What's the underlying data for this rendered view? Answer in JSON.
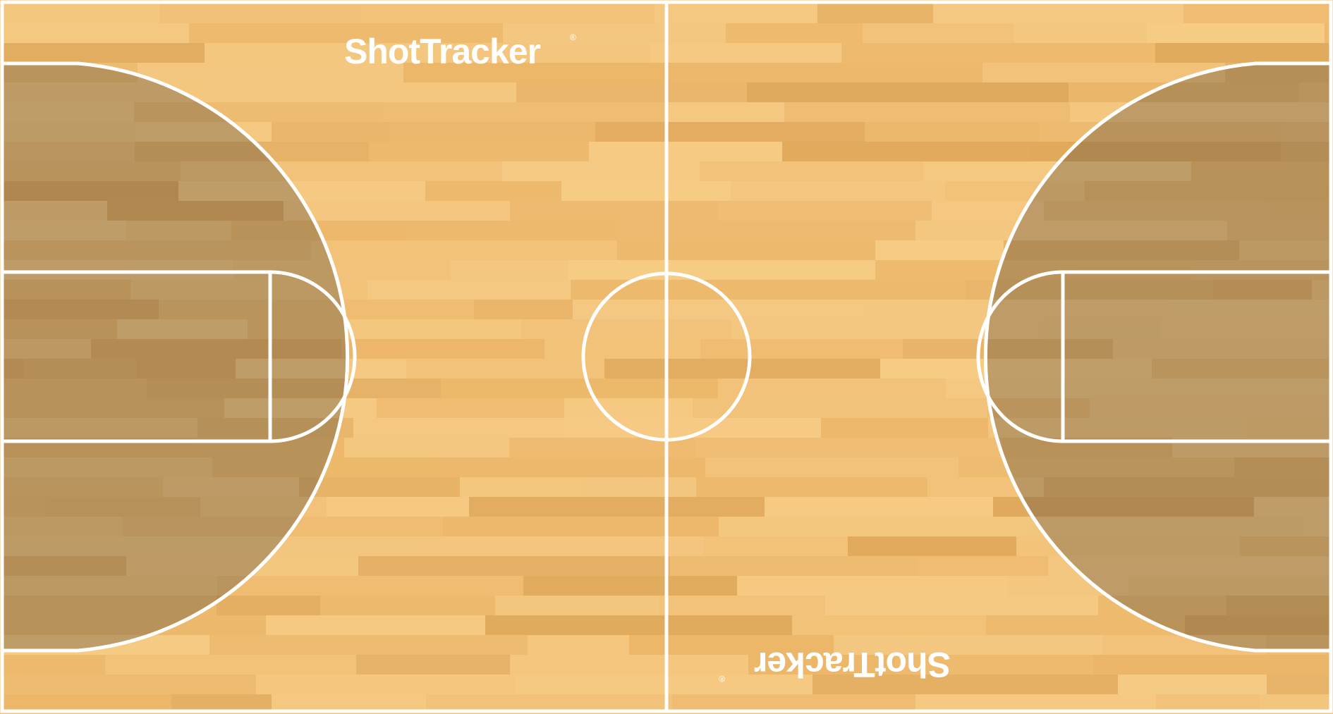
{
  "brand": {
    "logo_text": "ShotTracker",
    "registered_mark": "®"
  },
  "colors": {
    "wood_base": "#f2c27a",
    "wood_light": "#f6cc86",
    "wood_mid": "#eab466",
    "wood_dark": "#dca456",
    "three_point_shade": "#5a4a3a",
    "court_lines": "#ffffff"
  },
  "icons": {
    "logo": "shottracker-logo"
  }
}
